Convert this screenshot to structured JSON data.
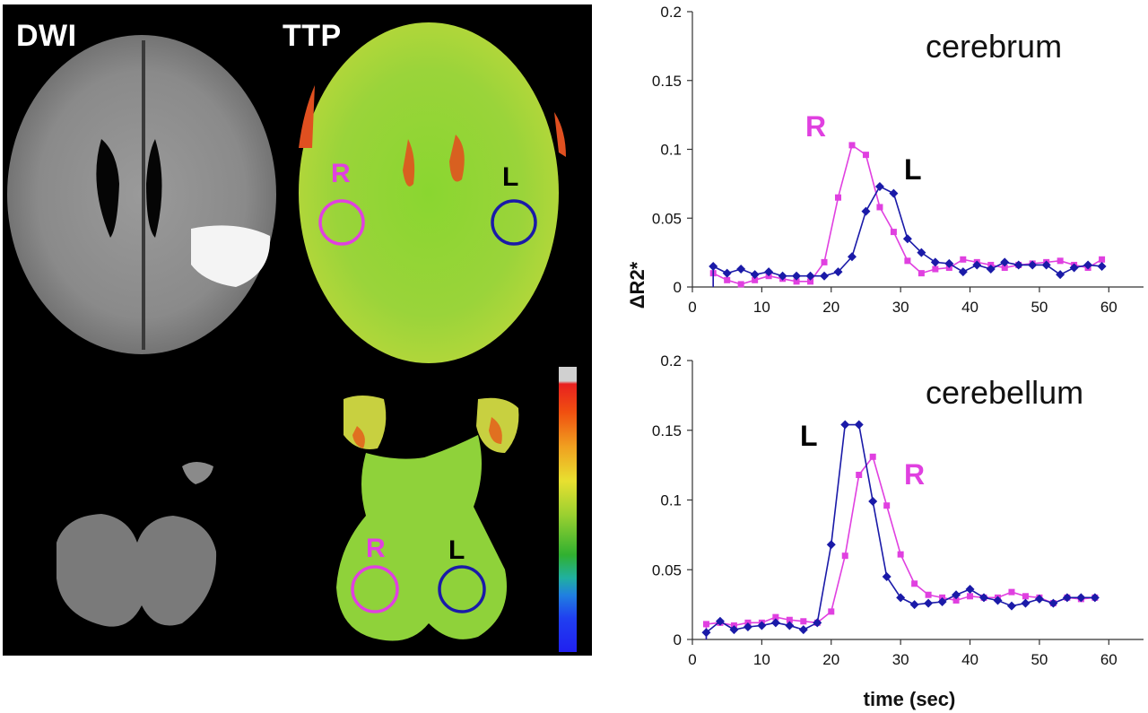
{
  "images": {
    "dwi_label": "DWI",
    "ttp_label": "TTP",
    "roi_right_label": "R",
    "roi_left_label": "L",
    "colors": {
      "roi_right": "#e040e0",
      "roi_left": "#1a1aa8",
      "background": "#000000"
    }
  },
  "chart_data": [
    {
      "type": "line",
      "title": "cerebrum",
      "xlabel": "",
      "ylabel": "ΔR2*",
      "xlim": [
        0,
        65
      ],
      "ylim": [
        0,
        0.2
      ],
      "xticks": [
        0,
        10,
        20,
        30,
        40,
        50,
        60
      ],
      "yticks": [
        0,
        0.05,
        0.1,
        0.15,
        0.2
      ],
      "ytick_labels": [
        "0",
        "0.05",
        "0.1",
        "0.15",
        "0.2"
      ],
      "grid": false,
      "series": [
        {
          "name": "R",
          "color": "#e040e0",
          "marker": "square",
          "x": [
            3,
            5,
            7,
            9,
            11,
            13,
            15,
            17,
            19,
            21,
            23,
            25,
            27,
            29,
            31,
            33,
            35,
            37,
            39,
            41,
            43,
            45,
            47,
            49,
            51,
            53,
            55,
            57,
            59
          ],
          "y": [
            0.01,
            0.005,
            0.002,
            0.005,
            0.008,
            0.006,
            0.004,
            0.004,
            0.018,
            0.065,
            0.103,
            0.096,
            0.058,
            0.04,
            0.019,
            0.01,
            0.013,
            0.014,
            0.02,
            0.018,
            0.016,
            0.014,
            0.016,
            0.017,
            0.018,
            0.019,
            0.016,
            0.014,
            0.02
          ]
        },
        {
          "name": "L",
          "color": "#1a1aa8",
          "marker": "diamond",
          "x": [
            3,
            5,
            7,
            9,
            11,
            13,
            15,
            17,
            19,
            21,
            23,
            25,
            27,
            29,
            31,
            33,
            35,
            37,
            39,
            41,
            43,
            45,
            47,
            49,
            51,
            53,
            55,
            57,
            59
          ],
          "y": [
            0.015,
            0.01,
            0.013,
            0.009,
            0.011,
            0.008,
            0.008,
            0.008,
            0.008,
            0.011,
            0.022,
            0.055,
            0.073,
            0.068,
            0.035,
            0.025,
            0.018,
            0.017,
            0.011,
            0.016,
            0.013,
            0.018,
            0.016,
            0.016,
            0.016,
            0.009,
            0.014,
            0.016,
            0.015
          ]
        }
      ]
    },
    {
      "type": "line",
      "title": "cerebellum",
      "xlabel": "time (sec)",
      "ylabel": "",
      "xlim": [
        0,
        65
      ],
      "ylim": [
        0,
        0.2
      ],
      "xticks": [
        0,
        10,
        20,
        30,
        40,
        50,
        60
      ],
      "yticks": [
        0,
        0.05,
        0.1,
        0.15,
        0.2
      ],
      "ytick_labels": [
        "0",
        "0.05",
        "0.1",
        "0.15",
        "0.2"
      ],
      "grid": false,
      "series": [
        {
          "name": "R",
          "color": "#e040e0",
          "marker": "square",
          "x": [
            2,
            4,
            6,
            8,
            10,
            12,
            14,
            16,
            18,
            20,
            22,
            24,
            26,
            28,
            30,
            32,
            34,
            36,
            38,
            40,
            42,
            44,
            46,
            48,
            50,
            52,
            54,
            56,
            58
          ],
          "y": [
            0.011,
            0.012,
            0.01,
            0.012,
            0.012,
            0.016,
            0.014,
            0.013,
            0.012,
            0.02,
            0.06,
            0.118,
            0.131,
            0.096,
            0.061,
            0.04,
            0.032,
            0.03,
            0.028,
            0.031,
            0.03,
            0.03,
            0.034,
            0.031,
            0.03,
            0.026,
            0.03,
            0.029,
            0.03
          ]
        },
        {
          "name": "L",
          "color": "#1a1aa8",
          "marker": "diamond",
          "x": [
            2,
            4,
            6,
            8,
            10,
            12,
            14,
            16,
            18,
            20,
            22,
            24,
            26,
            28,
            30,
            32,
            34,
            36,
            38,
            40,
            42,
            44,
            46,
            48,
            50,
            52,
            54,
            56,
            58
          ],
          "y": [
            0.005,
            0.013,
            0.007,
            0.009,
            0.01,
            0.012,
            0.01,
            0.007,
            0.012,
            0.068,
            0.154,
            0.154,
            0.099,
            0.045,
            0.03,
            0.025,
            0.026,
            0.027,
            0.032,
            0.036,
            0.03,
            0.028,
            0.024,
            0.026,
            0.029,
            0.026,
            0.03,
            0.03,
            0.03
          ]
        }
      ]
    }
  ]
}
